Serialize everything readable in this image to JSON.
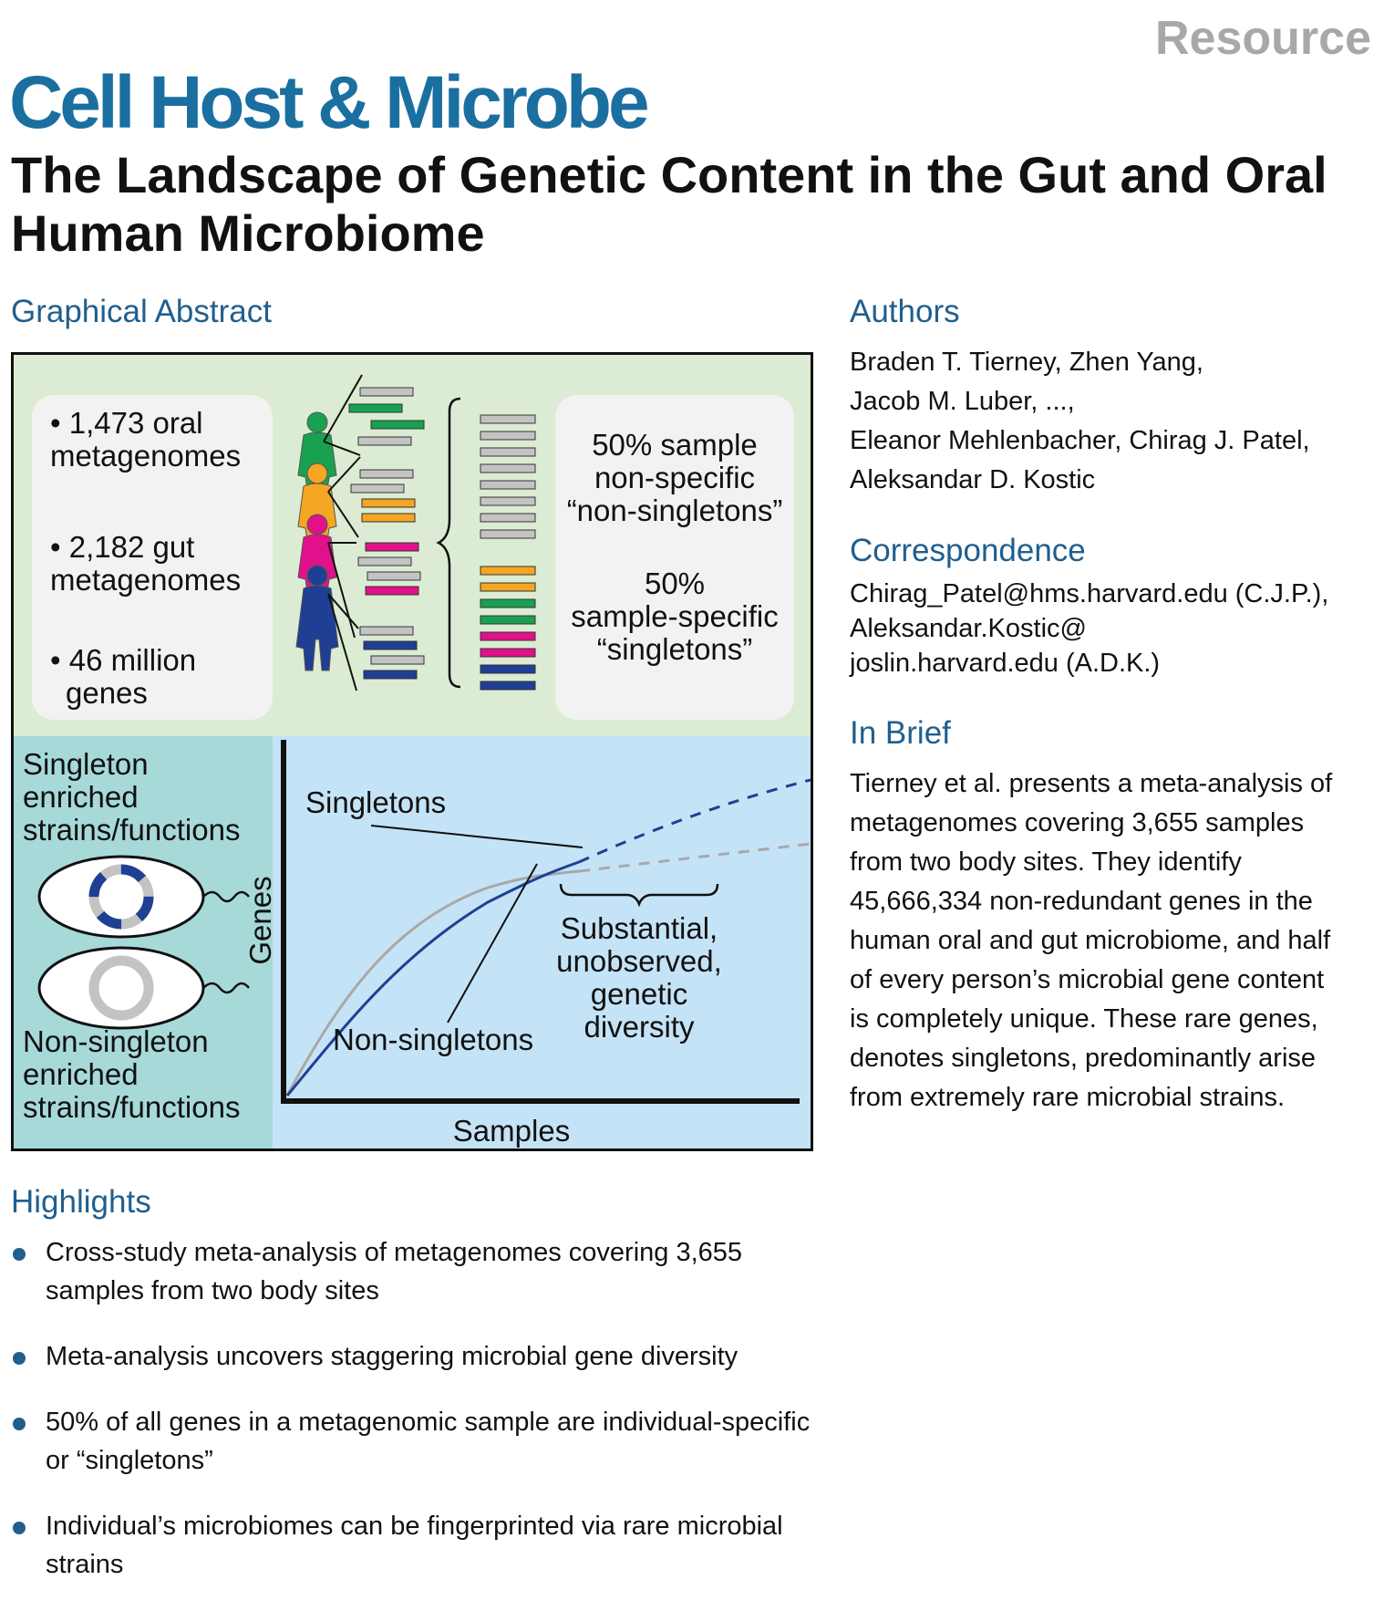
{
  "header": {
    "resource_label": "Resource",
    "journal_name": "Cell Host & Microbe",
    "title": "The Landscape of Genetic Content in the Gut and Oral Human Microbiome"
  },
  "graphical_abstract": {
    "heading": "Graphical Abstract",
    "stats": [
      "• 1,473 oral",
      "metagenomes",
      "• 2,182 gut",
      "metagenomes",
      "• 46 million",
      "genes"
    ],
    "nonsingleton_note": [
      "50% sample",
      "non-specific",
      "“non-singletons”"
    ],
    "singleton_note": [
      "50%",
      "sample-specific",
      "“singletons”"
    ],
    "singleton_strains": [
      "Singleton",
      "enriched",
      "strains/functions"
    ],
    "nonsingleton_strains": [
      "Non-singleton",
      "enriched",
      "strains/functions"
    ],
    "plot_labels": {
      "y_axis": "Genes",
      "x_axis": "Samples",
      "singletons": "Singletons",
      "non_singletons": "Non-singletons",
      "diversity": [
        "Substantial,",
        "unobserved,",
        "genetic",
        "diversity"
      ]
    },
    "colors": {
      "top_panel": "#dcecd4",
      "left_panel": "#a7d9d9",
      "right_panel": "#c5e3f6",
      "stat_card": "#f2f2f2",
      "green": "#1aa150",
      "orange": "#f5a623",
      "magenta": "#e0118a",
      "navy": "#1f3f94",
      "gray": "#c3c3c3"
    }
  },
  "authors": {
    "heading": "Authors",
    "lines": [
      "Braden T. Tierney, Zhen Yang,",
      "Jacob M. Luber, ...,",
      "Eleanor Mehlenbacher, Chirag J. Patel,",
      "Aleksandar D. Kostic"
    ]
  },
  "correspondence": {
    "heading": "Correspondence",
    "lines": [
      "Chirag_Patel@hms.harvard.edu (C.J.P.),",
      "Aleksandar.Kostic@",
      "joslin.harvard.edu (A.D.K.)"
    ]
  },
  "in_brief": {
    "heading": "In Brief",
    "lines": [
      "Tierney et al. presents a meta-analysis of",
      "metagenomes covering 3,655 samples",
      "from two body sites. They identify",
      "45,666,334 non-redundant genes in the",
      "human oral and gut microbiome, and half",
      "of every person’s microbial gene content",
      "is completely unique. These rare genes,",
      "denotes singletons, predominantly arise",
      "from extremely rare microbial strains."
    ]
  },
  "highlights": {
    "heading": "Highlights",
    "items": [
      "Cross-study meta-analysis of metagenomes covering 3,655 samples from two body sites",
      "Meta-analysis uncovers staggering microbial gene diversity",
      "50% of all genes in a metagenomic sample are individual-specific or “singletons”",
      "Individual’s microbiomes can be fingerprinted via rare microbial strains"
    ]
  }
}
